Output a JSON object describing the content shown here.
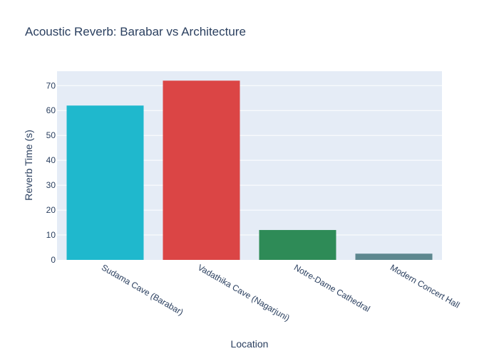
{
  "chart_data": {
    "type": "bar",
    "title": "Acoustic Reverb: Barabar vs Architecture",
    "xlabel": "Location",
    "ylabel": "Reverb Time (s)",
    "categories": [
      "Sudama Cave (Barabar)",
      "Vadathika Cave (Nagarjuni)",
      "Notre-Dame Cathedral",
      "Modern Concert Hall"
    ],
    "values": [
      62,
      72,
      12,
      2.5
    ],
    "colors": [
      "#1fb8cd",
      "#db4545",
      "#2e8b57",
      "#5d878f"
    ],
    "ylim": [
      0,
      75.8
    ],
    "yticks": [
      0,
      10,
      20,
      30,
      40,
      50,
      60,
      70
    ],
    "grid": true,
    "plot_bgcolor": "#e5ecf6"
  }
}
